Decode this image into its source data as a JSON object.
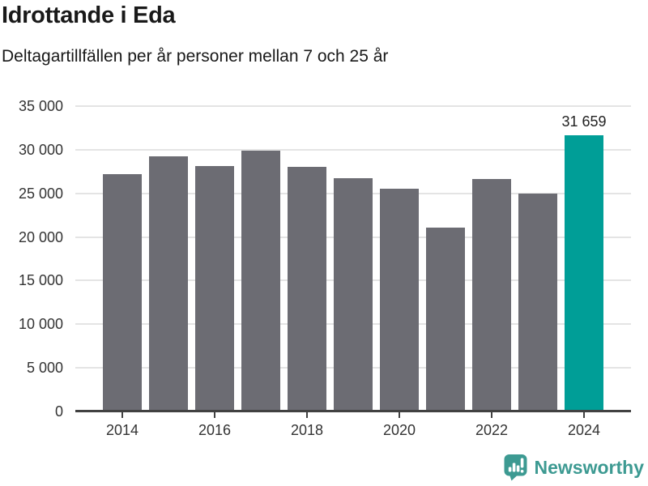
{
  "header": {
    "title": "Idrottande i Eda",
    "subtitle": "Deltagartillfällen per år personer mellan 7 och 25 år"
  },
  "chart_data": {
    "type": "bar",
    "title": "Idrottande i Eda",
    "subtitle": "Deltagartillfällen per år personer mellan 7 och 25 år",
    "categories": [
      "2014",
      "2015",
      "2016",
      "2017",
      "2018",
      "2019",
      "2020",
      "2021",
      "2022",
      "2023",
      "2024"
    ],
    "values": [
      27200,
      29200,
      28100,
      29900,
      28000,
      26750,
      25550,
      21100,
      26650,
      25000,
      31659
    ],
    "highlight_index": 10,
    "annotation": {
      "text": "31 659",
      "category": "2024"
    },
    "xlabel": "",
    "ylabel": "",
    "ylim": [
      0,
      35000
    ],
    "ytick_step": 5000,
    "ytick_labels": [
      "0",
      "5 000",
      "10 000",
      "15 000",
      "20 000",
      "25 000",
      "30 000",
      "35 000"
    ],
    "xtick_labels": [
      "2014",
      "2016",
      "2018",
      "2020",
      "2022",
      "2024"
    ],
    "grid": true,
    "legend": false,
    "colors": {
      "bar": "#6c6c73",
      "highlight": "#009e97",
      "gridline": "#e4e4e4",
      "axis": "#414141",
      "tick_text": "#333333",
      "annotation_text": "#222222"
    }
  },
  "footer": {
    "brand": "Newsworthy",
    "brand_color": "#3d9a92",
    "logo_icon": "newsworthy-speech-bubble-chart-icon"
  }
}
